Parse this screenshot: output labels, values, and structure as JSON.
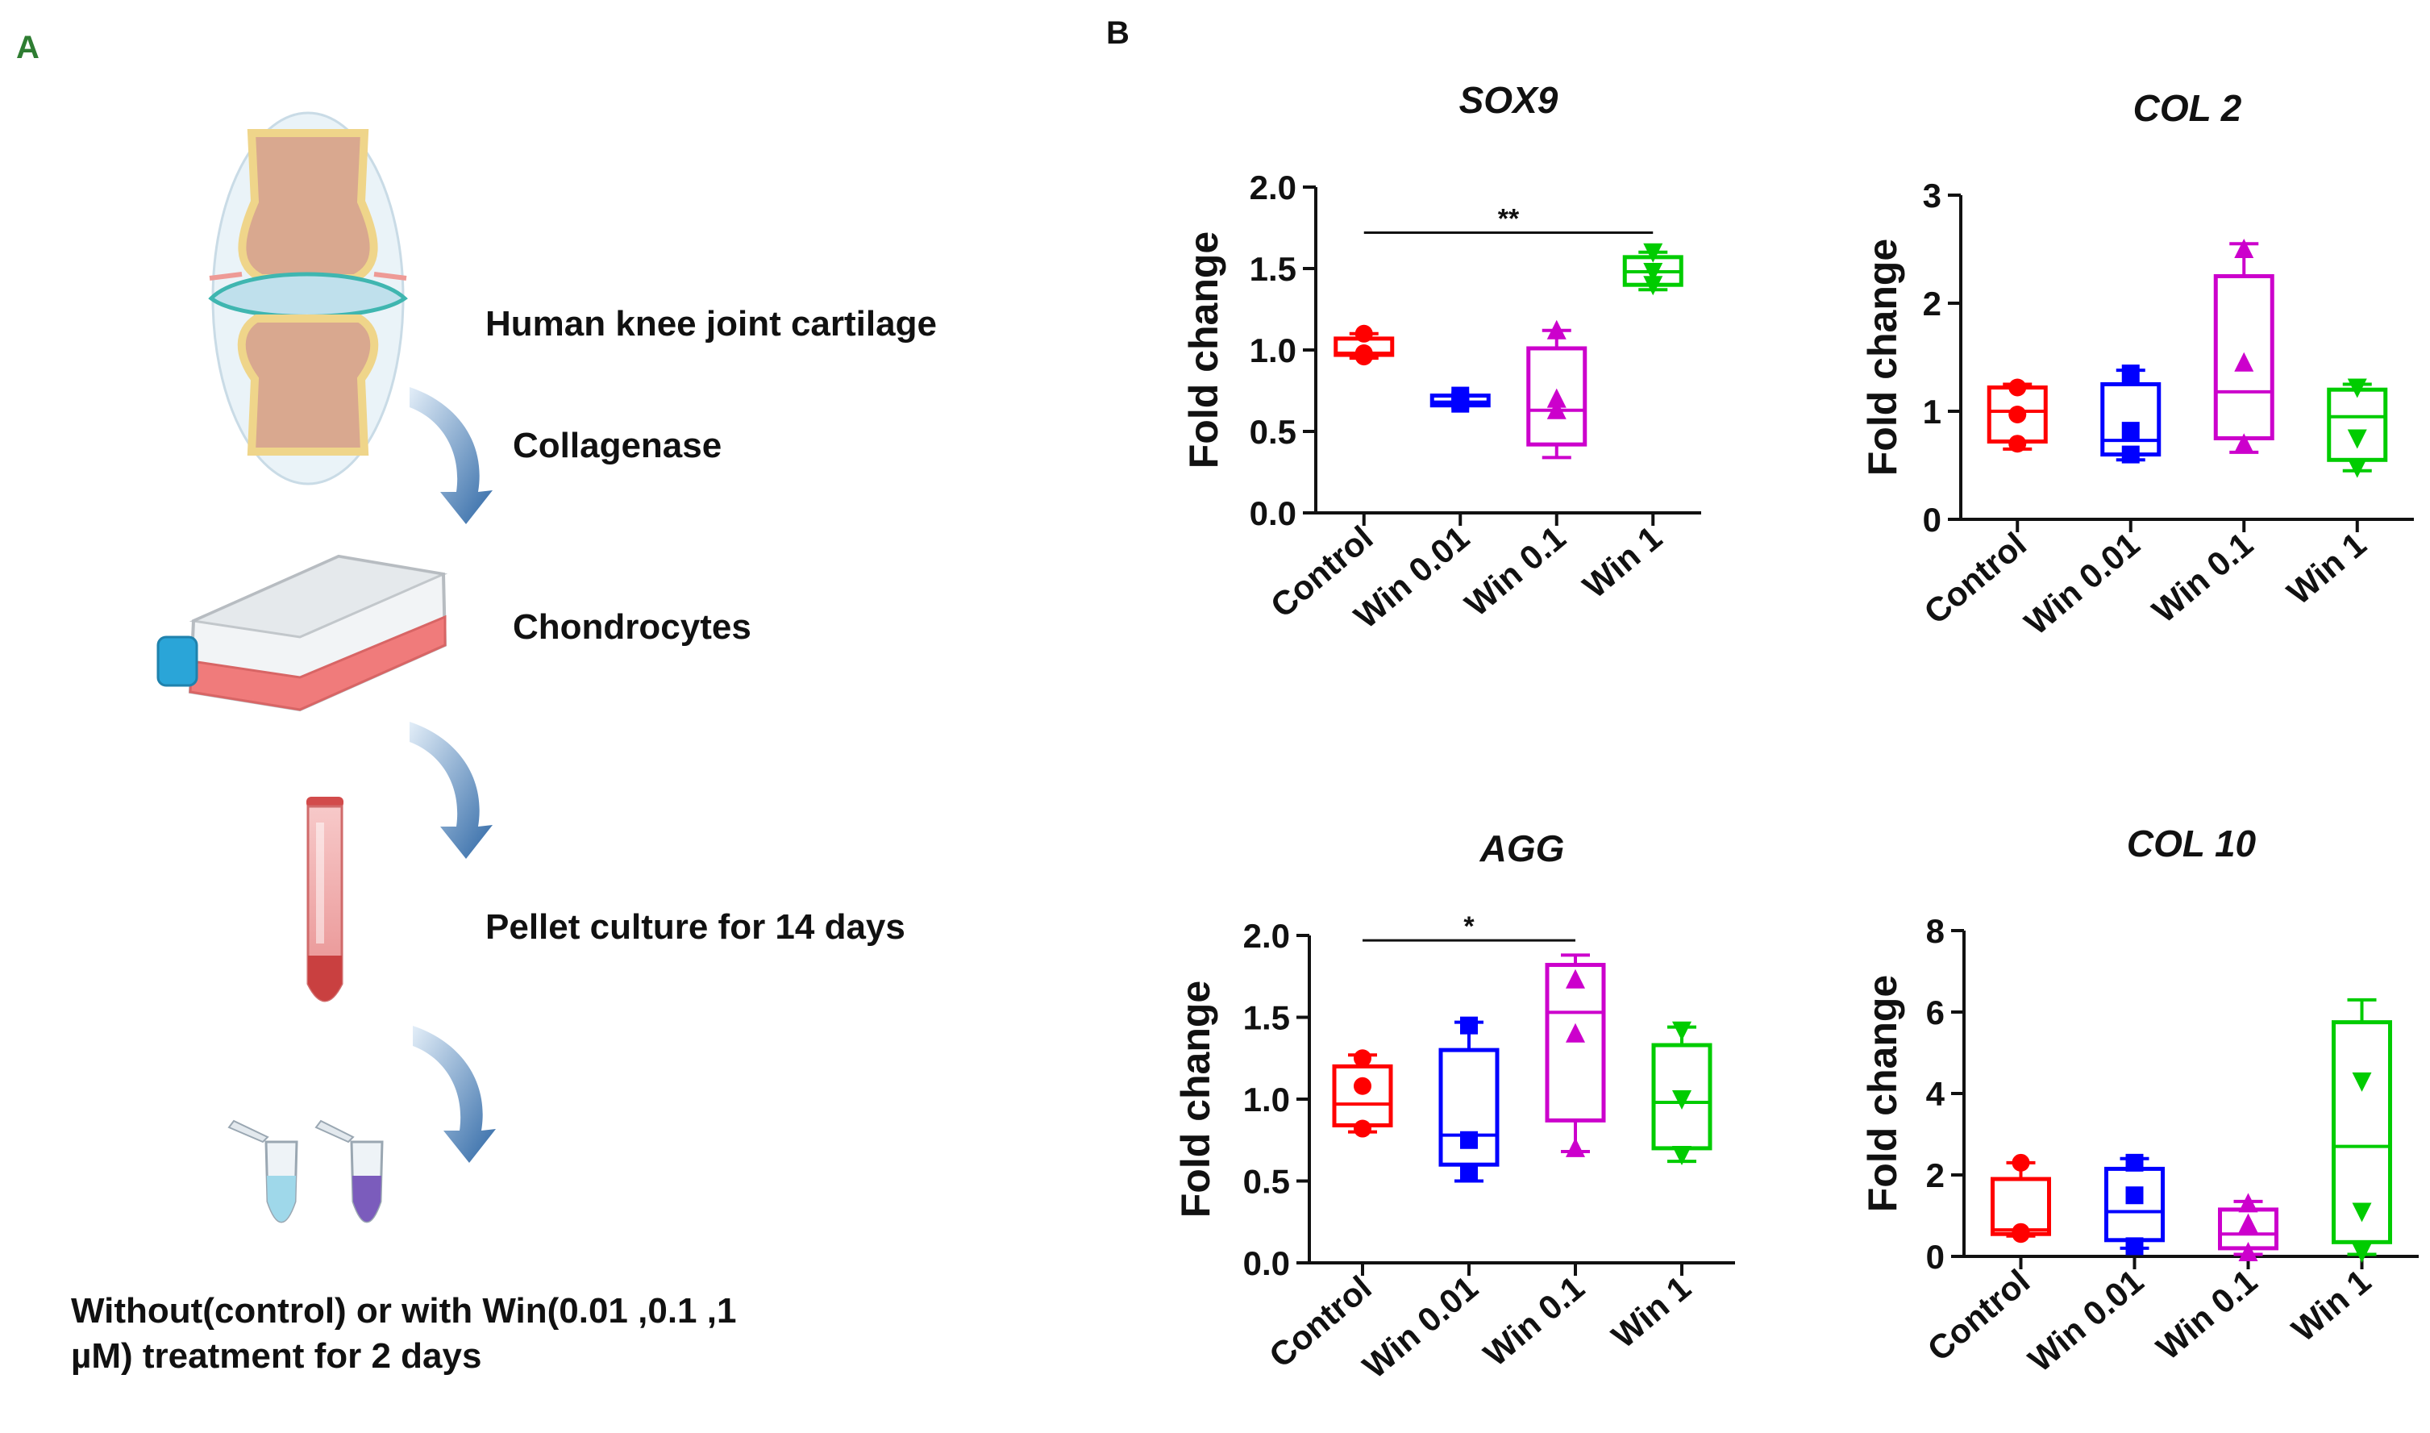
{
  "panel_a": {
    "label": "A",
    "steps": [
      {
        "label": "Human knee joint cartilage",
        "icon": "knee-joint-icon"
      },
      {
        "label": "Collagenase",
        "icon": "curved-arrow-icon"
      },
      {
        "label": "Chondrocytes",
        "icon": "culture-flask-icon"
      },
      {
        "label": "Pellet culture  for 14 days",
        "icon": "test-tube-icon"
      },
      {
        "label": "",
        "icon": "microcentrifuge-tubes-icon"
      }
    ],
    "treatment_line1": "Without(control) or with Win(0.01 ,0.1 ,1",
    "treatment_line2": "µM)   treatment for 2 days",
    "colors": {
      "label_a": "#2e7d32",
      "arrow": "#3f77b0",
      "bone": "#d9a88f",
      "cartilage": "#bfe0ec",
      "flask_media": "#f07b7b",
      "tube_fill": "#c94040",
      "cap": "#2aa5d8"
    }
  },
  "panel_b": {
    "label": "B"
  },
  "group_colors": [
    "#ff0000",
    "#0000ff",
    "#cc00cc",
    "#00cc00"
  ],
  "chart_data": [
    {
      "type": "box",
      "title": "SOX9",
      "ylabel": "Fold change",
      "categories": [
        "Control",
        "Win 0.01",
        "Win 0.1",
        "Win 1"
      ],
      "ylim": [
        0,
        2.0
      ],
      "yticks": [
        0.0,
        0.5,
        1.0,
        1.5,
        2.0
      ],
      "ytick_labels": [
        "0.0",
        "0.5",
        "1.0",
        "1.5",
        "2.0"
      ],
      "markers": [
        "circle",
        "square",
        "triangle",
        "triangle-down"
      ],
      "boxes": [
        {
          "min": 0.95,
          "q1": 0.97,
          "median": 0.98,
          "q3": 1.07,
          "max": 1.1
        },
        {
          "min": 0.66,
          "q1": 0.66,
          "median": 0.68,
          "q3": 0.72,
          "max": 0.72
        },
        {
          "min": 0.34,
          "q1": 0.42,
          "median": 0.63,
          "q3": 1.01,
          "max": 1.12
        },
        {
          "min": 1.37,
          "q1": 1.4,
          "median": 1.48,
          "q3": 1.57,
          "max": 1.6
        }
      ],
      "points": [
        [
          1.1,
          0.98,
          0.96
        ],
        [
          0.72,
          0.69,
          0.67
        ],
        [
          1.12,
          0.7,
          0.63
        ],
        [
          1.6,
          1.48,
          1.4
        ]
      ],
      "significance": {
        "from": 0,
        "to": 3,
        "y": 1.72,
        "label": "**"
      }
    },
    {
      "type": "box",
      "title": "COL 2",
      "ylabel": "Fold change",
      "categories": [
        "Control",
        "Win 0.01",
        "Win 0.1",
        "Win 1"
      ],
      "ylim": [
        0,
        3
      ],
      "yticks": [
        0,
        1,
        2,
        3
      ],
      "ytick_labels": [
        "0",
        "1",
        "2",
        "3"
      ],
      "markers": [
        "circle",
        "square",
        "triangle",
        "triangle-down"
      ],
      "boxes": [
        {
          "min": 0.65,
          "q1": 0.72,
          "median": 1.0,
          "q3": 1.22,
          "max": 1.25
        },
        {
          "min": 0.55,
          "q1": 0.6,
          "median": 0.73,
          "q3": 1.25,
          "max": 1.38
        },
        {
          "min": 0.62,
          "q1": 0.75,
          "median": 1.18,
          "q3": 2.25,
          "max": 2.55
        },
        {
          "min": 0.45,
          "q1": 0.55,
          "median": 0.95,
          "q3": 1.2,
          "max": 1.25
        }
      ],
      "points": [
        [
          1.22,
          0.97,
          0.7
        ],
        [
          1.35,
          0.82,
          0.6
        ],
        [
          2.5,
          1.45,
          0.7
        ],
        [
          1.22,
          0.75,
          0.48
        ]
      ],
      "significance": null
    },
    {
      "type": "box",
      "title": "AGG",
      "ylabel": "Fold change",
      "categories": [
        "Control",
        "Win 0.01",
        "Win 0.1",
        "Win 1"
      ],
      "ylim": [
        0,
        2.0
      ],
      "yticks": [
        0.0,
        0.5,
        1.0,
        1.5,
        2.0
      ],
      "ytick_labels": [
        "0.0",
        "0.5",
        "1.0",
        "1.5",
        "2.0"
      ],
      "markers": [
        "circle",
        "square",
        "triangle",
        "triangle-down"
      ],
      "boxes": [
        {
          "min": 0.8,
          "q1": 0.84,
          "median": 0.97,
          "q3": 1.2,
          "max": 1.27
        },
        {
          "min": 0.5,
          "q1": 0.6,
          "median": 0.78,
          "q3": 1.3,
          "max": 1.47
        },
        {
          "min": 0.68,
          "q1": 0.87,
          "median": 1.53,
          "q3": 1.82,
          "max": 1.88
        },
        {
          "min": 0.62,
          "q1": 0.7,
          "median": 0.98,
          "q3": 1.33,
          "max": 1.44
        }
      ],
      "points": [
        [
          1.25,
          1.08,
          0.82
        ],
        [
          1.45,
          0.75,
          0.55
        ],
        [
          1.73,
          1.4,
          0.7
        ],
        [
          1.42,
          1.0,
          0.66
        ]
      ],
      "significance": {
        "from": 0,
        "to": 2,
        "y": 1.97,
        "label": "*"
      }
    },
    {
      "type": "box",
      "title": "COL 10",
      "ylabel": "Fold change",
      "categories": [
        "Control",
        "Win 0.01",
        "Win 0.1",
        "Win 1"
      ],
      "ylim": [
        0,
        8
      ],
      "yticks": [
        0,
        2,
        4,
        6,
        8
      ],
      "ytick_labels": [
        "0",
        "2",
        "4",
        "6",
        "8"
      ],
      "markers": [
        "circle",
        "square",
        "triangle",
        "triangle-down"
      ],
      "boxes": [
        {
          "min": 0.5,
          "q1": 0.55,
          "median": 0.65,
          "q3": 1.9,
          "max": 2.3
        },
        {
          "min": 0.2,
          "q1": 0.4,
          "median": 1.1,
          "q3": 2.15,
          "max": 2.4
        },
        {
          "min": 0.05,
          "q1": 0.2,
          "median": 0.55,
          "q3": 1.15,
          "max": 1.35
        },
        {
          "min": 0.05,
          "q1": 0.35,
          "median": 2.7,
          "q3": 5.75,
          "max": 6.3
        }
      ],
      "points": [
        [
          2.3,
          0.6,
          0.55
        ],
        [
          2.3,
          1.5,
          0.25
        ],
        [
          1.3,
          0.8,
          0.1
        ],
        [
          4.3,
          1.1,
          0.1
        ]
      ],
      "significance": null
    }
  ]
}
